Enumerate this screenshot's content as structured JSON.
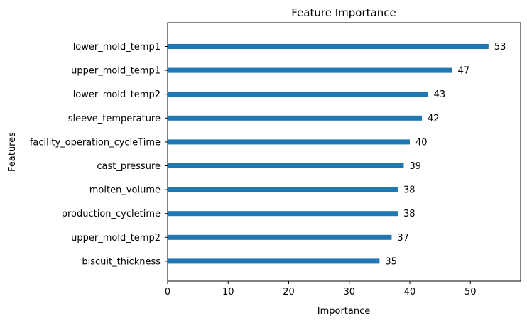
{
  "chart_data": {
    "type": "bar",
    "orientation": "horizontal",
    "title": "Feature Importance",
    "xlabel": "Importance",
    "ylabel": "Features",
    "categories": [
      "lower_mold_temp1",
      "upper_mold_temp1",
      "lower_mold_temp2",
      "sleeve_temperature",
      "facility_operation_cycleTime",
      "cast_pressure",
      "molten_volume",
      "production_cycletime",
      "upper_mold_temp2",
      "biscuit_thickness"
    ],
    "values": [
      53,
      47,
      43,
      42,
      40,
      39,
      38,
      38,
      37,
      35
    ],
    "xlim": [
      0,
      58.3
    ],
    "xticks": [
      0,
      10,
      20,
      30,
      40,
      50
    ],
    "grid": false,
    "bar_color": "#1f77b4"
  }
}
